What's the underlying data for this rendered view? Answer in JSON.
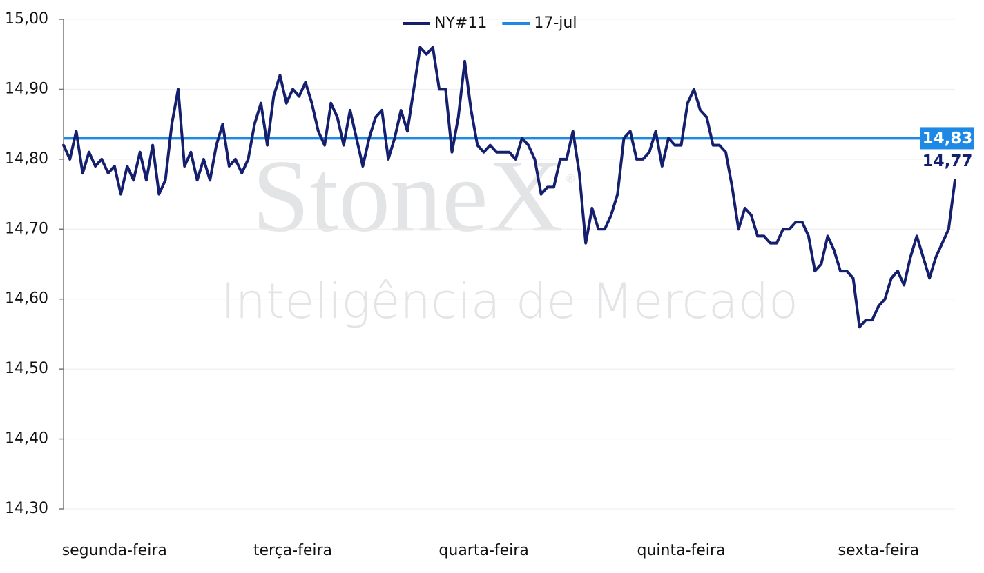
{
  "chart_data": {
    "type": "line",
    "watermark": {
      "title": "StoneX",
      "mark": "®",
      "subtitle": "Inteligência de Mercado"
    },
    "categories": [
      null,
      null,
      null,
      null,
      null,
      null,
      null,
      null,
      "segunda-feira",
      null,
      null,
      null,
      null,
      null,
      null,
      null,
      null,
      null,
      null,
      null,
      null,
      null,
      null,
      null,
      null,
      null,
      null,
      null,
      null,
      null,
      null,
      null,
      null,
      null,
      null,
      null,
      "terça-feira",
      null,
      null,
      null,
      null,
      null,
      null,
      null,
      null,
      null,
      null,
      null,
      null,
      null,
      null,
      null,
      null,
      null,
      null,
      null,
      null,
      null,
      null,
      null,
      null,
      null,
      null,
      null,
      null,
      null,
      "quarta-feira",
      null,
      null,
      null,
      null,
      null,
      null,
      null,
      null,
      null,
      null,
      null,
      null,
      null,
      null,
      null,
      null,
      null,
      null,
      null,
      null,
      null,
      null,
      null,
      null,
      null,
      null,
      null,
      null,
      null,
      null,
      "quinta-feira",
      null,
      null,
      null,
      null,
      null,
      null,
      null,
      null,
      null,
      null,
      null,
      null,
      null,
      null,
      null,
      null,
      null,
      null,
      null,
      null,
      null,
      null,
      null,
      null,
      null,
      null,
      null,
      null,
      null,
      null,
      "sexta-feira",
      null,
      null,
      null,
      null,
      null,
      null,
      null,
      null,
      null,
      null,
      null,
      null
    ],
    "series": [
      {
        "name": "NY#11",
        "color": "#141f6e",
        "last_value_label": "14,77",
        "values": [
          14.82,
          14.8,
          14.84,
          14.78,
          14.81,
          14.79,
          14.8,
          14.78,
          14.79,
          14.75,
          14.79,
          14.77,
          14.81,
          14.77,
          14.82,
          14.75,
          14.77,
          14.85,
          14.9,
          14.79,
          14.81,
          14.77,
          14.8,
          14.77,
          14.82,
          14.85,
          14.79,
          14.8,
          14.78,
          14.8,
          14.85,
          14.88,
          14.82,
          14.89,
          14.92,
          14.88,
          14.9,
          14.89,
          14.91,
          14.88,
          14.84,
          14.82,
          14.88,
          14.86,
          14.82,
          14.87,
          14.83,
          14.79,
          14.83,
          14.86,
          14.87,
          14.8,
          14.83,
          14.87,
          14.84,
          14.9,
          14.96,
          14.95,
          14.96,
          14.9,
          14.9,
          14.81,
          14.86,
          14.94,
          14.87,
          14.82,
          14.81,
          14.82,
          14.81,
          14.81,
          14.81,
          14.8,
          14.83,
          14.82,
          14.8,
          14.75,
          14.76,
          14.76,
          14.8,
          14.8,
          14.84,
          14.78,
          14.68,
          14.73,
          14.7,
          14.7,
          14.72,
          14.75,
          14.83,
          14.84,
          14.8,
          14.8,
          14.81,
          14.84,
          14.79,
          14.83,
          14.82,
          14.82,
          14.88,
          14.9,
          14.87,
          14.86,
          14.82,
          14.82,
          14.81,
          14.76,
          14.7,
          14.73,
          14.72,
          14.69,
          14.69,
          14.68,
          14.68,
          14.7,
          14.7,
          14.71,
          14.71,
          14.69,
          14.64,
          14.65,
          14.69,
          14.67,
          14.64,
          14.64,
          14.63,
          14.56,
          14.57,
          14.57,
          14.59,
          14.6,
          14.63,
          14.64,
          14.62,
          14.66,
          14.69,
          14.66,
          14.63,
          14.66,
          14.68,
          14.7,
          14.77
        ]
      }
    ],
    "reference_line": {
      "name": "17-jul",
      "color": "#1e88e5",
      "value": 14.83,
      "value_label": "14,83"
    },
    "ylim": [
      14.3,
      15.0
    ],
    "yticks": [
      {
        "value": 14.3,
        "label": "14,30"
      },
      {
        "value": 14.4,
        "label": "14,40"
      },
      {
        "value": 14.5,
        "label": "14,50"
      },
      {
        "value": 14.6,
        "label": "14,60"
      },
      {
        "value": 14.7,
        "label": "14,70"
      },
      {
        "value": 14.8,
        "label": "14,80"
      },
      {
        "value": 14.9,
        "label": "14,90"
      },
      {
        "value": 15.0,
        "label": "15,00"
      }
    ],
    "grid": true,
    "legend": "top"
  }
}
